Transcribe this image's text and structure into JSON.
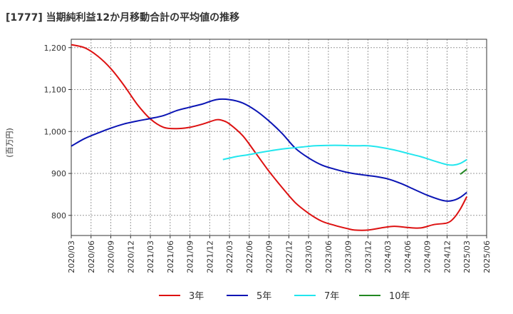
{
  "chart_data": {
    "type": "line",
    "title": "[1777]  当期純利益12か月移動合計の平均値の推移",
    "ylabel": "(百万円)",
    "xlabel": "",
    "ylim": [
      752,
      1220
    ],
    "yticks": [
      800,
      900,
      1000,
      1100,
      1200
    ],
    "ytick_labels": [
      "800",
      "900",
      "1,000",
      "1,100",
      "1,200"
    ],
    "xlim": [
      "2020-03",
      "2025-06"
    ],
    "xticks": [
      "2020/03",
      "2020/06",
      "2020/09",
      "2020/12",
      "2021/03",
      "2021/06",
      "2021/09",
      "2021/12",
      "2022/03",
      "2022/06",
      "2022/09",
      "2022/12",
      "2023/03",
      "2023/06",
      "2023/09",
      "2023/12",
      "2024/03",
      "2024/06",
      "2024/09",
      "2024/12",
      "2025/03",
      "2025/06"
    ],
    "grid": true,
    "legend_position": "bottom",
    "series": [
      {
        "name": "3年",
        "color": "#dd1111",
        "points": [
          [
            "2020-03",
            1207
          ],
          [
            "2020-05",
            1200
          ],
          [
            "2020-07",
            1180
          ],
          [
            "2020-09",
            1150
          ],
          [
            "2020-11",
            1110
          ],
          [
            "2021-01",
            1065
          ],
          [
            "2021-03",
            1030
          ],
          [
            "2021-05",
            1010
          ],
          [
            "2021-07",
            1007
          ],
          [
            "2021-09",
            1010
          ],
          [
            "2021-11",
            1018
          ],
          [
            "2022-01",
            1028
          ],
          [
            "2022-02",
            1026
          ],
          [
            "2022-03",
            1018
          ],
          [
            "2022-05",
            990
          ],
          [
            "2022-07",
            948
          ],
          [
            "2022-09",
            905
          ],
          [
            "2022-11",
            866
          ],
          [
            "2023-01",
            830
          ],
          [
            "2023-03",
            805
          ],
          [
            "2023-05",
            786
          ],
          [
            "2023-07",
            776
          ],
          [
            "2023-09",
            768
          ],
          [
            "2023-10",
            765
          ],
          [
            "2023-12",
            765
          ],
          [
            "2024-02",
            770
          ],
          [
            "2024-04",
            774
          ],
          [
            "2024-06",
            771
          ],
          [
            "2024-08",
            770
          ],
          [
            "2024-10",
            778
          ],
          [
            "2024-12",
            782
          ],
          [
            "2025-01",
            793
          ],
          [
            "2025-02",
            815
          ],
          [
            "2025-03",
            845
          ]
        ]
      },
      {
        "name": "5年",
        "color": "#0a14b4",
        "points": [
          [
            "2020-03",
            965
          ],
          [
            "2020-05",
            983
          ],
          [
            "2020-07",
            996
          ],
          [
            "2020-09",
            1008
          ],
          [
            "2020-11",
            1018
          ],
          [
            "2021-01",
            1025
          ],
          [
            "2021-03",
            1031
          ],
          [
            "2021-05",
            1038
          ],
          [
            "2021-07",
            1050
          ],
          [
            "2021-09",
            1058
          ],
          [
            "2021-11",
            1066
          ],
          [
            "2022-01",
            1076
          ],
          [
            "2022-03",
            1076
          ],
          [
            "2022-05",
            1068
          ],
          [
            "2022-07",
            1050
          ],
          [
            "2022-09",
            1025
          ],
          [
            "2022-11",
            995
          ],
          [
            "2023-01",
            960
          ],
          [
            "2023-03",
            937
          ],
          [
            "2023-05",
            920
          ],
          [
            "2023-07",
            910
          ],
          [
            "2023-09",
            902
          ],
          [
            "2023-11",
            897
          ],
          [
            "2024-01",
            893
          ],
          [
            "2024-03",
            887
          ],
          [
            "2024-05",
            876
          ],
          [
            "2024-07",
            862
          ],
          [
            "2024-09",
            848
          ],
          [
            "2024-11",
            837
          ],
          [
            "2024-12",
            834
          ],
          [
            "2025-01",
            836
          ],
          [
            "2025-02",
            843
          ],
          [
            "2025-03",
            855
          ]
        ]
      },
      {
        "name": "7年",
        "color": "#22e6ee",
        "points": [
          [
            "2022-02",
            933
          ],
          [
            "2022-04",
            940
          ],
          [
            "2022-06",
            945
          ],
          [
            "2022-08",
            951
          ],
          [
            "2022-10",
            956
          ],
          [
            "2022-12",
            960
          ],
          [
            "2023-02",
            963
          ],
          [
            "2023-04",
            966
          ],
          [
            "2023-06",
            967
          ],
          [
            "2023-08",
            967
          ],
          [
            "2023-10",
            966
          ],
          [
            "2023-12",
            966
          ],
          [
            "2024-02",
            962
          ],
          [
            "2024-04",
            956
          ],
          [
            "2024-06",
            948
          ],
          [
            "2024-08",
            940
          ],
          [
            "2024-10",
            930
          ],
          [
            "2024-12",
            921
          ],
          [
            "2025-01",
            920
          ],
          [
            "2025-02",
            924
          ],
          [
            "2025-03",
            933
          ]
        ]
      },
      {
        "name": "10年",
        "color": "#228822",
        "points": [
          [
            "2025-02",
            898
          ],
          [
            "2025-03",
            910
          ]
        ]
      }
    ]
  }
}
